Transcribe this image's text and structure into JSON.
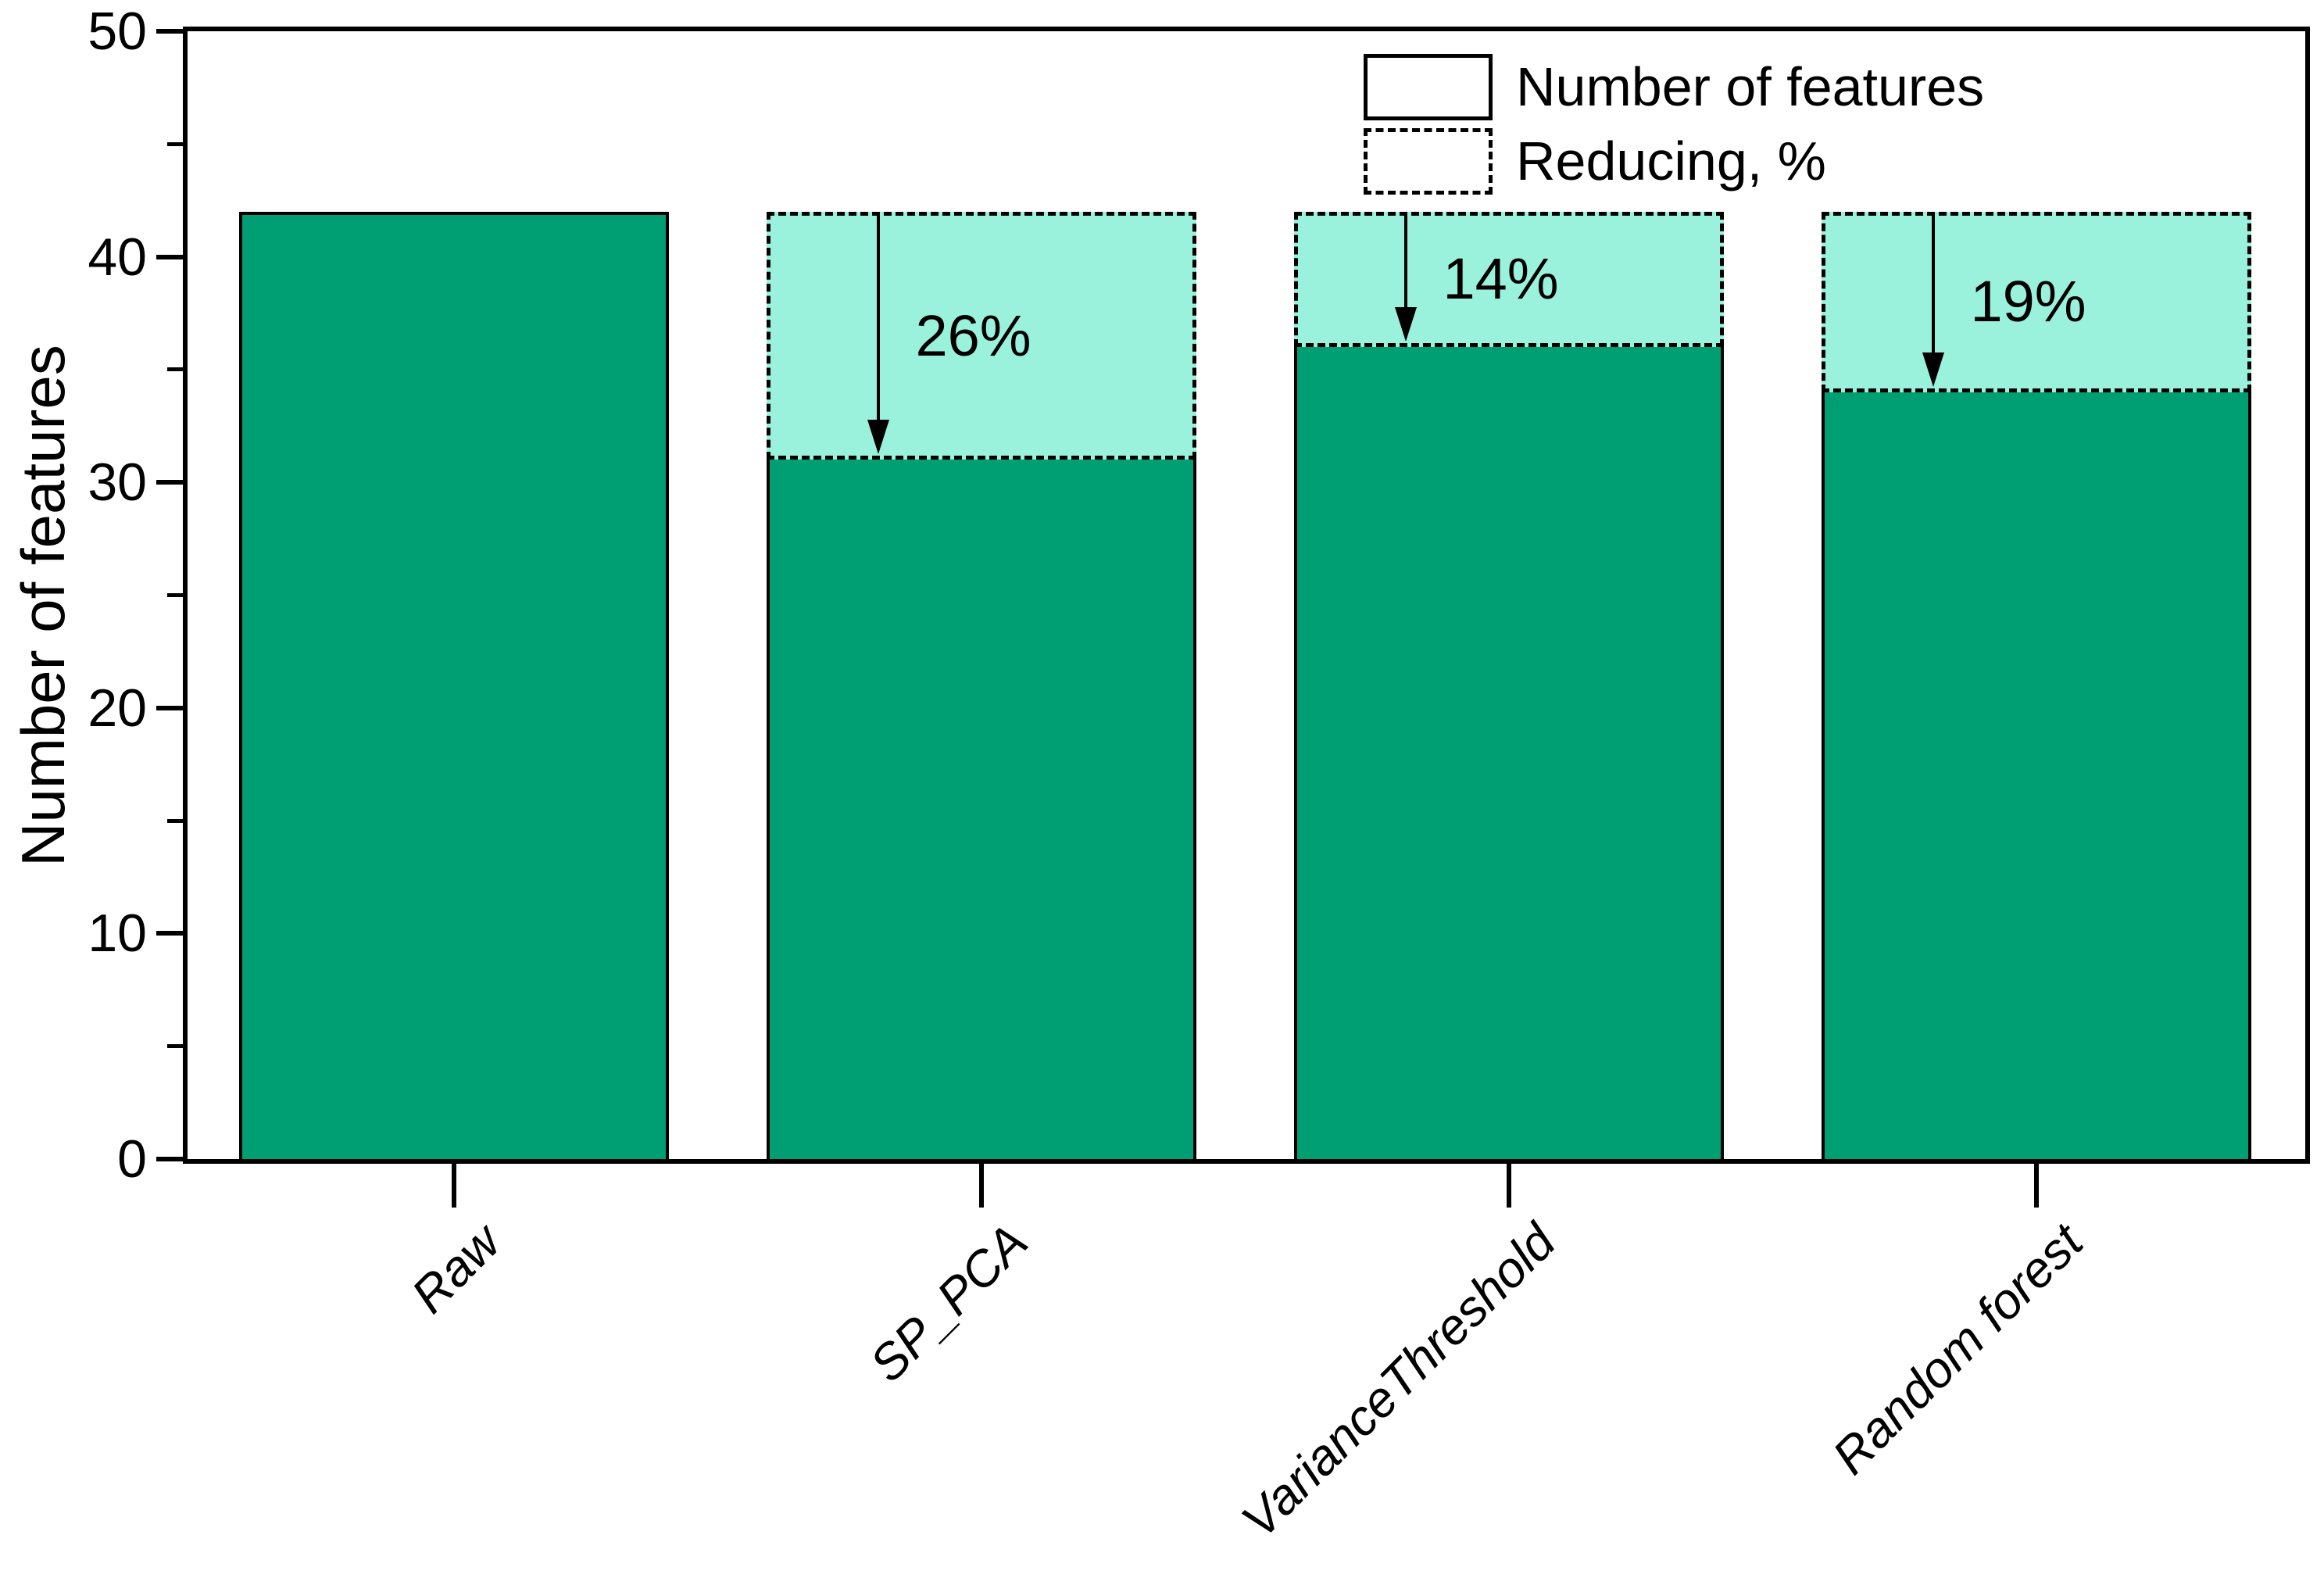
{
  "chart_data": {
    "type": "bar",
    "title": "",
    "xlabel": "",
    "ylabel": "Number of features",
    "ylim": [
      0,
      50
    ],
    "yticks": [
      0,
      10,
      20,
      30,
      40,
      50
    ],
    "yticks_minor": [
      5,
      15,
      25,
      35,
      45
    ],
    "grid": false,
    "legend_position": "top-right",
    "categories": [
      "Raw",
      "SP_PCA",
      "VarianceThreshold",
      "Random forest"
    ],
    "series": [
      {
        "name": "Number of features",
        "values": [
          42,
          31,
          36,
          34
        ]
      },
      {
        "name": "Reducing, %",
        "baseline_value": 42,
        "reduction_percent": [
          0,
          26,
          14,
          19
        ],
        "labels": [
          "",
          "26%",
          "14%",
          "19%"
        ]
      }
    ],
    "colors": {
      "bar_fill": "#009E73",
      "reduction_fill": "#9BF2DC",
      "line": "#000000"
    }
  },
  "yaxis": {
    "title": "Number of features",
    "tick_labels": [
      "0",
      "10",
      "20",
      "30",
      "40",
      "50"
    ]
  },
  "xaxis": {
    "labels": [
      "Raw",
      "SP_PCA",
      "VarianceThreshold",
      "Random forest"
    ]
  },
  "legend": {
    "items": [
      {
        "label": "Number of features",
        "style": "solid"
      },
      {
        "label": "Reducing, %",
        "style": "dashed"
      }
    ]
  },
  "annotations": [
    {
      "category": "SP_PCA",
      "text": "26%"
    },
    {
      "category": "VarianceThreshold",
      "text": "14%"
    },
    {
      "category": "Random forest",
      "text": "19%"
    }
  ]
}
